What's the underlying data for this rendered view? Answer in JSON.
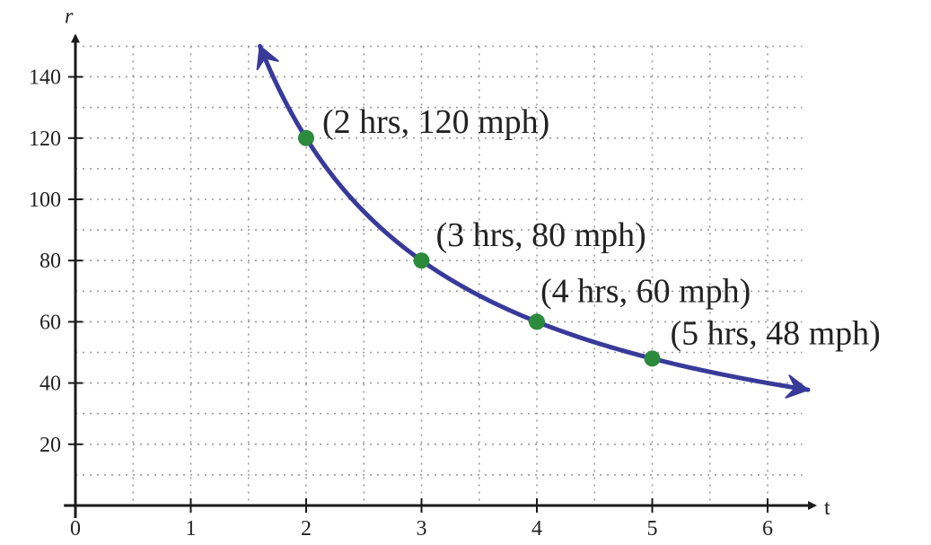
{
  "chart_data": {
    "type": "line",
    "title": "",
    "xlabel": "t",
    "ylabel": "r",
    "xlim": [
      0,
      6.25
    ],
    "ylim": [
      0,
      150
    ],
    "x_ticks": [
      0,
      1,
      2,
      3,
      4,
      5,
      6
    ],
    "x_tick_labels": [
      "0",
      "1",
      "2",
      "3",
      "4",
      "5",
      "6"
    ],
    "y_ticks": [
      20,
      40,
      60,
      80,
      100,
      120,
      140
    ],
    "y_tick_labels": [
      "20",
      "40",
      "60",
      "80",
      "100",
      "120",
      "140"
    ],
    "grid": true,
    "curve": {
      "function": "r = 240 / t",
      "x_start": 1.6,
      "x_end": 6.35,
      "arrows_at_both_ends": true
    },
    "points": [
      {
        "x": 2,
        "y": 120,
        "label": "(2 hrs, 120 mph)"
      },
      {
        "x": 3,
        "y": 80,
        "label": "(3 hrs, 80 mph)"
      },
      {
        "x": 4,
        "y": 60,
        "label": "(4 hrs, 60 mph)"
      },
      {
        "x": 5,
        "y": 48,
        "label": "(5 hrs, 48 mph)"
      }
    ],
    "colors": {
      "curve": "#383a9a",
      "points": "#2c8a3c",
      "axes": "#1a1a1a",
      "grid": "#9a9a9a"
    }
  }
}
